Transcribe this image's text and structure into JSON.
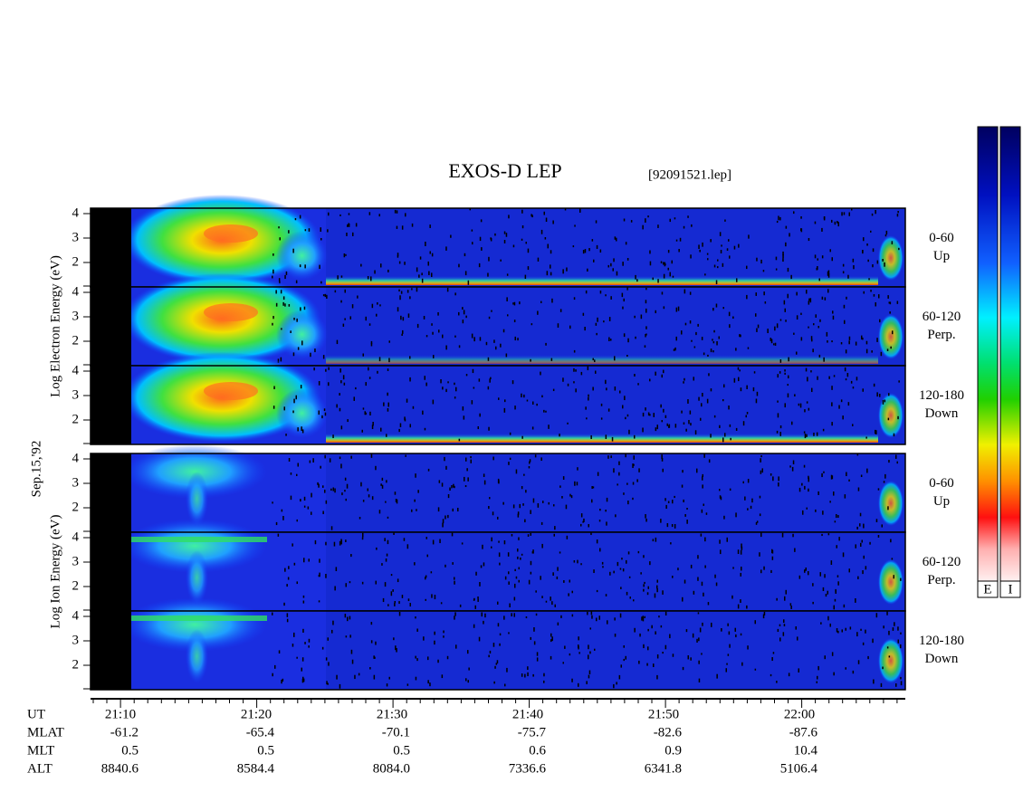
{
  "header": {
    "title": "EXOS-D LEP",
    "file": "[92091521.lep]"
  },
  "date": "Sep.15,'92",
  "groups": [
    {
      "label": "Log Electron Energy (eV)",
      "panels": [
        {
          "range": "0-60",
          "direction": "Up"
        },
        {
          "range": "60-120",
          "direction": "Perp."
        },
        {
          "range": "120-180",
          "direction": "Down"
        }
      ]
    },
    {
      "label": "Log Ion Energy (eV)",
      "panels": [
        {
          "range": "0-60",
          "direction": "Up"
        },
        {
          "range": "60-120",
          "direction": "Perp."
        },
        {
          "range": "120-180",
          "direction": "Down"
        }
      ]
    }
  ],
  "energy_ticks": [
    "4",
    "3",
    "2"
  ],
  "colorbar_labels": [
    "E",
    "I"
  ],
  "table": {
    "rows": [
      [
        "UT",
        "21:10",
        "21:20",
        "21:30",
        "21:40",
        "21:50",
        "22:00"
      ],
      [
        "MLAT",
        "-61.2",
        "-65.4",
        "-70.1",
        "-75.7",
        "-82.6",
        "-87.6"
      ],
      [
        "MLT",
        "0.5",
        "0.5",
        "0.5",
        "0.6",
        "0.9",
        "10.4"
      ],
      [
        "ALT",
        "8840.6",
        "8584.4",
        "8084.0",
        "7336.6",
        "6341.8",
        "5106.4"
      ]
    ]
  }
}
